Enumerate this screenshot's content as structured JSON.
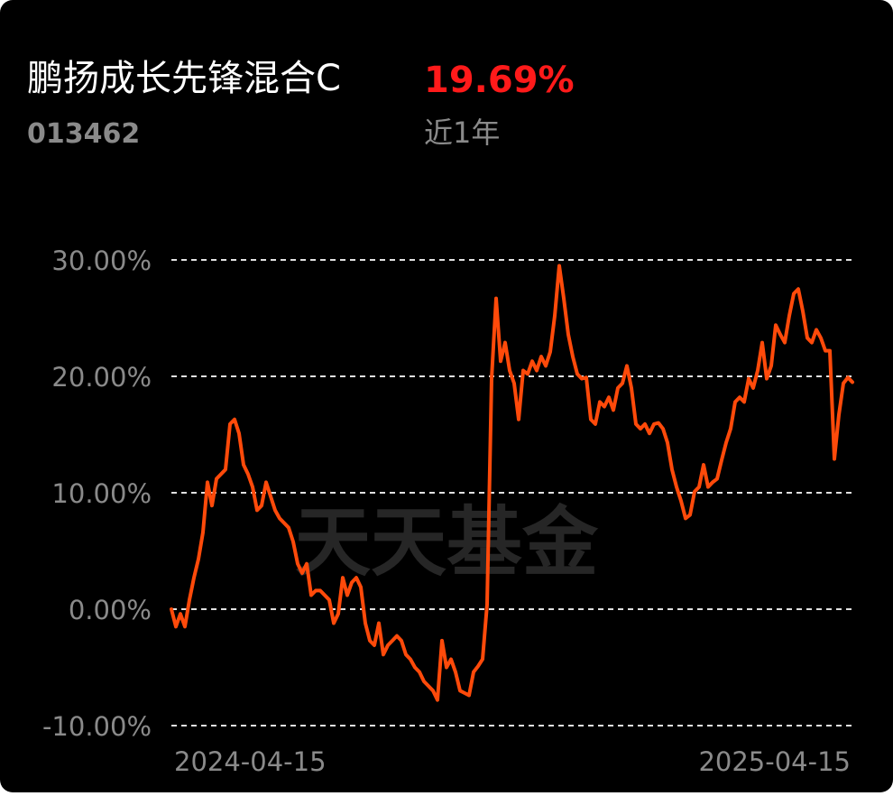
{
  "chart_data": {
    "type": "line",
    "title": "鹏扬成长先锋混合C",
    "return": "19.69%",
    "code": "013462",
    "period": "近1年",
    "watermark": "天天基金",
    "color": "#ff4a0a",
    "return_color": "#ff1a1a",
    "grid": true,
    "ylim": [
      -10,
      30
    ],
    "yticks": [
      {
        "value": -10,
        "label": "-10.00%"
      },
      {
        "value": 0,
        "label": "0.00%"
      },
      {
        "value": 10,
        "label": "10.00%"
      },
      {
        "value": 20,
        "label": "20.00%"
      },
      {
        "value": 30,
        "label": "30.00%"
      }
    ],
    "categories": [
      "2024-04-15",
      null,
      null,
      null,
      null,
      null,
      null,
      null,
      null,
      null,
      null,
      null,
      null,
      null,
      null,
      null,
      null,
      null,
      null,
      null,
      null,
      null,
      null,
      null,
      null,
      null,
      null,
      null,
      null,
      null,
      null,
      null,
      null,
      null,
      null,
      null,
      null,
      null,
      null,
      null,
      null,
      null,
      null,
      null,
      null,
      null,
      null,
      null,
      null,
      null,
      null,
      null,
      null,
      null,
      null,
      null,
      null,
      null,
      null,
      null,
      null,
      null,
      null,
      null,
      null,
      null,
      null,
      null,
      null,
      null,
      null,
      null,
      null,
      null,
      null,
      null,
      null,
      null,
      null,
      null,
      null,
      null,
      null,
      null,
      null,
      null,
      null,
      null,
      null,
      null,
      null,
      null,
      null,
      null,
      null,
      null,
      null,
      null,
      null,
      null,
      null,
      null,
      null,
      null,
      null,
      null,
      null,
      null,
      null,
      null,
      null,
      null,
      null,
      null,
      null,
      null,
      null,
      null,
      null,
      null,
      null,
      null,
      null,
      null,
      null,
      null,
      null,
      null,
      null,
      null,
      null,
      null,
      null,
      null,
      null,
      null,
      null,
      null,
      null,
      null,
      null,
      null,
      null,
      null,
      null,
      null,
      null,
      null,
      null,
      null,
      null,
      "2025-04-15"
    ],
    "values": [
      0,
      -1.5,
      -0.4,
      -1.5,
      0.8,
      2.7,
      4.3,
      6.6,
      10.9,
      8.9,
      11.2,
      11.6,
      12,
      15.9,
      16.3,
      15.1,
      12.4,
      11.6,
      10.5,
      8.5,
      8.9,
      10.9,
      9.7,
      8.5,
      7.8,
      7.4,
      7,
      5.8,
      3.9,
      3.1,
      3.9,
      1.2,
      1.6,
      1.6,
      1.2,
      0.8,
      -1.2,
      -0.4,
      2.7,
      1.2,
      2.3,
      2.7,
      1.9,
      -1.2,
      -2.7,
      -3.1,
      -1.2,
      -3.9,
      -3.1,
      -2.7,
      -2.3,
      -2.7,
      -3.9,
      -4.3,
      -5.0,
      -5.4,
      -6.2,
      -6.6,
      -7.0,
      -7.8,
      -2.7,
      -5.0,
      -4.3,
      -5.4,
      -7.0,
      -7.2,
      -7.4,
      -5.4,
      -4.9,
      -4.3,
      0.4,
      19.8,
      26.7,
      21.3,
      22.9,
      20.5,
      19.4,
      16.3,
      20.5,
      20.2,
      21.3,
      20.5,
      21.7,
      20.9,
      22.1,
      25.2,
      29.5,
      26.7,
      23.6,
      21.7,
      20.2,
      19.8,
      19.9,
      16.3,
      15.9,
      17.8,
      17.4,
      18.2,
      17.1,
      19.0,
      19.4,
      20.9,
      19.0,
      15.9,
      15.5,
      15.9,
      15.1,
      15.9,
      16.0,
      15.5,
      14.3,
      12.0,
      10.5,
      9.3,
      7.8,
      8.1,
      10.1,
      10.5,
      12.4,
      10.5,
      10.9,
      11.2,
      12.8,
      14.3,
      15.5,
      17.8,
      18.2,
      17.8,
      19.8,
      19.0,
      20.5,
      22.9,
      19.8,
      20.9,
      24.4,
      23.6,
      22.9,
      25.2,
      27.1,
      27.5,
      25.6,
      23.3,
      22.9,
      24.0,
      23.3,
      22.2,
      22.2,
      12.9,
      16.7,
      19.4,
      19.9,
      19.5
    ]
  }
}
